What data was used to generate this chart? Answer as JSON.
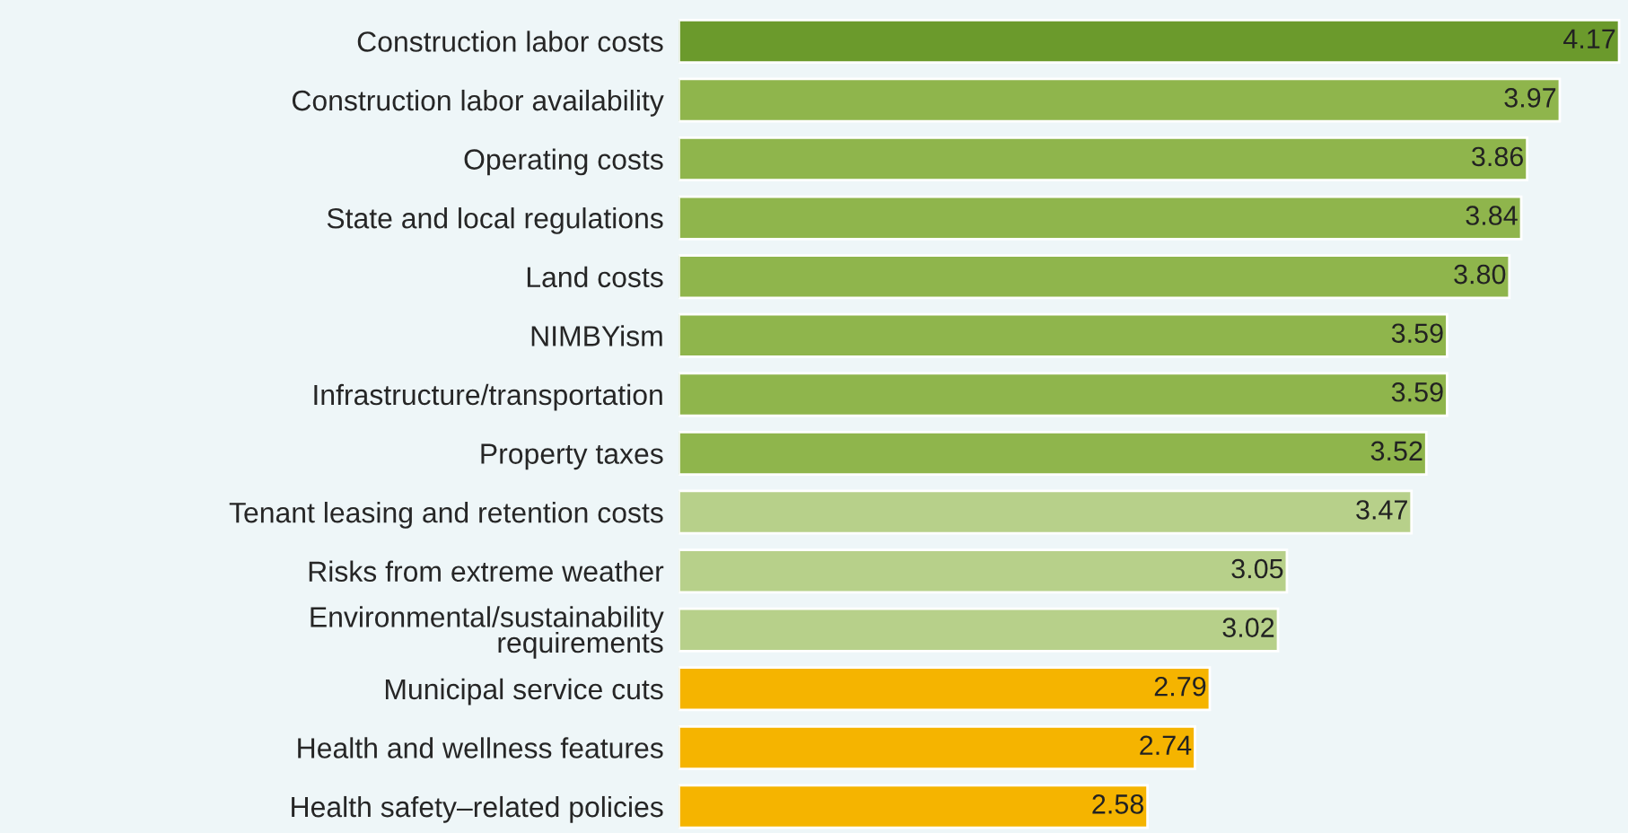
{
  "chart_data": {
    "type": "bar",
    "orientation": "horizontal",
    "categories": [
      "Construction labor costs",
      "Construction labor availability",
      "Operating costs",
      "State and local regulations",
      "Land costs",
      "NIMBYism",
      "Infrastructure/transportation",
      "Property taxes",
      "Tenant leasing and retention costs",
      "Risks from extreme weather",
      "Environmental/sustainability\nrequirements",
      "Municipal service cuts",
      "Health and wellness features",
      "Health safety–related policies"
    ],
    "values": [
      4.17,
      3.97,
      3.86,
      3.84,
      3.8,
      3.59,
      3.59,
      3.52,
      3.47,
      3.05,
      3.02,
      2.79,
      2.74,
      2.58
    ],
    "colors": [
      "#6b9a2c",
      "#8fb54c",
      "#8fb54c",
      "#8fb54c",
      "#8fb54c",
      "#8fb54c",
      "#8fb54c",
      "#8fb54c",
      "#b7d08a",
      "#b7d08a",
      "#b7d08a",
      "#f5b400",
      "#f5b400",
      "#f5b400"
    ],
    "value_labels": [
      "4.17",
      "3.97",
      "3.86",
      "3.84",
      "3.80",
      "3.59",
      "3.59",
      "3.52",
      "3.47",
      "3.05",
      "3.02",
      "2.79",
      "2.74",
      "2.58"
    ],
    "xlim": [
      1,
      4.2
    ],
    "tick_labels": "y",
    "grid": false,
    "legend": false
  }
}
